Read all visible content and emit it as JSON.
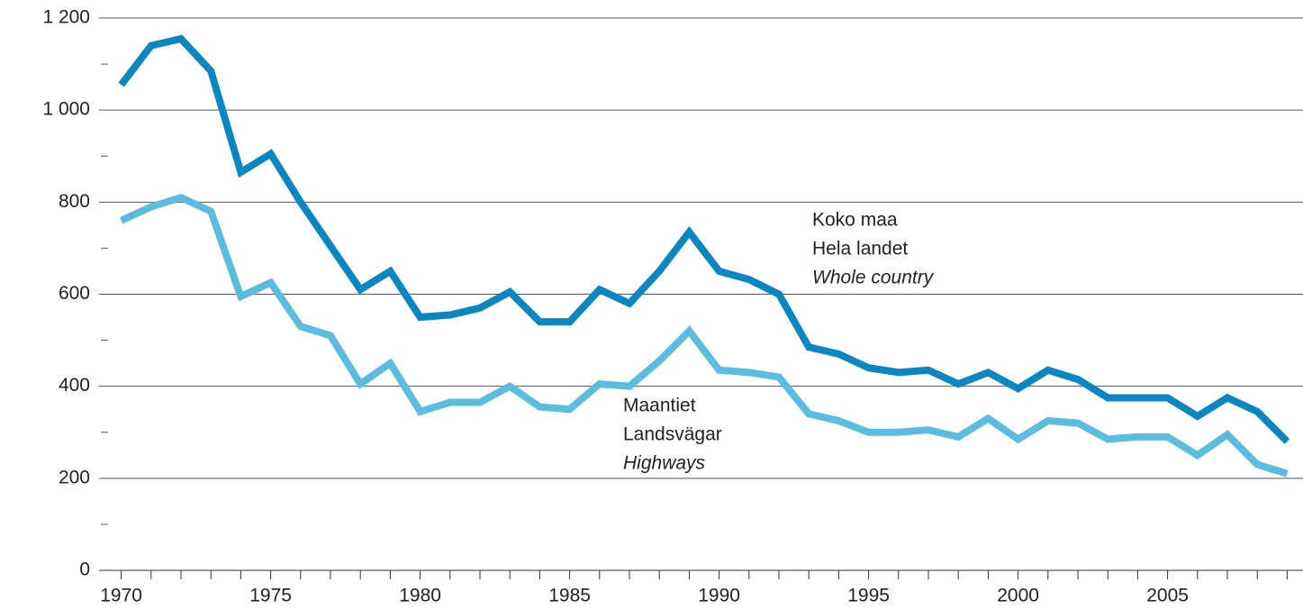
{
  "chart_data": {
    "type": "line",
    "x": [
      1970,
      1971,
      1972,
      1973,
      1974,
      1975,
      1976,
      1977,
      1978,
      1979,
      1980,
      1981,
      1982,
      1983,
      1984,
      1985,
      1986,
      1987,
      1988,
      1989,
      1990,
      1991,
      1992,
      1993,
      1994,
      1995,
      1996,
      1997,
      1998,
      1999,
      2000,
      2001,
      2002,
      2003,
      2004,
      2005,
      2006,
      2007,
      2008,
      2009
    ],
    "series": [
      {
        "name": "Koko maa",
        "color": "#0a87c0",
        "values": [
          1055,
          1140,
          1155,
          1085,
          865,
          905,
          800,
          705,
          610,
          650,
          550,
          555,
          570,
          605,
          540,
          540,
          610,
          580,
          650,
          735,
          650,
          632,
          600,
          485,
          470,
          440,
          430,
          435,
          405,
          430,
          395,
          435,
          415,
          375,
          375,
          375,
          335,
          375,
          345,
          280
        ]
      },
      {
        "name": "Maantiet",
        "color": "#5bbce0",
        "values": [
          760,
          790,
          810,
          780,
          595,
          625,
          530,
          510,
          405,
          450,
          345,
          365,
          365,
          400,
          355,
          350,
          405,
          400,
          455,
          520,
          435,
          430,
          420,
          340,
          325,
          300,
          300,
          305,
          290,
          330,
          285,
          325,
          320,
          285,
          290,
          290,
          250,
          295,
          230,
          210
        ]
      }
    ],
    "annotations": [
      {
        "lines": [
          "Koko maa",
          "Hela landet",
          "Whole country"
        ]
      },
      {
        "lines": [
          "Maantiet",
          "Landsvägar",
          "Highways"
        ]
      }
    ],
    "xlim": [
      1969.5,
      2009.5
    ],
    "xticks": [
      1970,
      1975,
      1980,
      1985,
      1990,
      1995,
      2000,
      2005
    ],
    "ylim": [
      0,
      1200
    ],
    "yticks": [
      0,
      200,
      400,
      600,
      800,
      {
        "value": 1000,
        "label": "1 000"
      },
      {
        "value": 1200,
        "label": "1 200"
      }
    ],
    "yticks_minor": [
      100,
      300,
      500,
      700,
      900,
      1100
    ],
    "grid": true
  }
}
